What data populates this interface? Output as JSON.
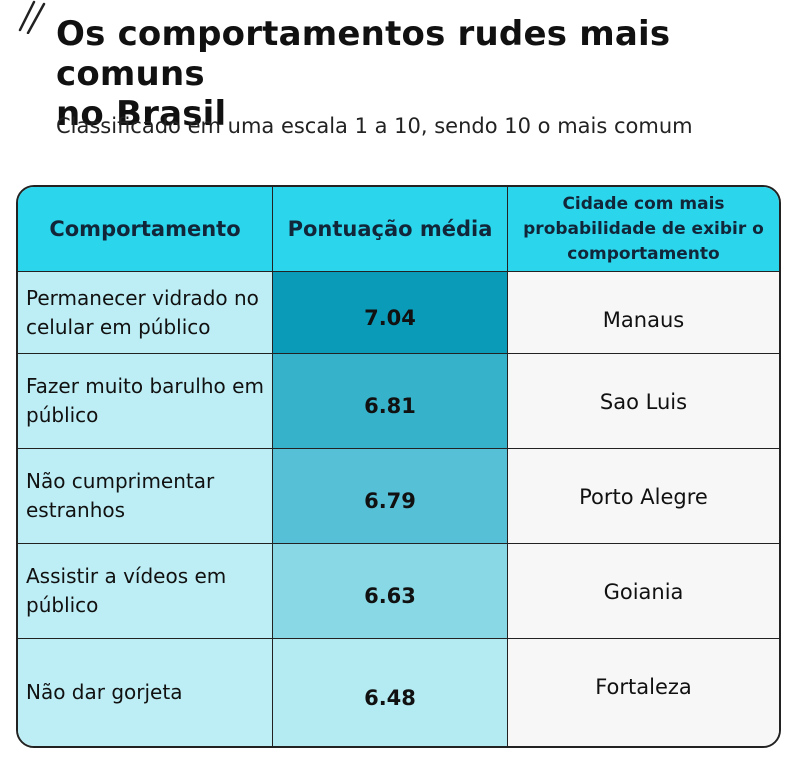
{
  "title": "Os comportamentos rudes mais comuns\nno Brasil",
  "subtitle": "Classificado em uma escala 1 a 10, sendo 10 o mais comum",
  "chart_data": {
    "type": "table",
    "columns": [
      "Comportamento",
      "Pontuação média",
      "Cidade com mais probabilidade de exibir o comportamento"
    ],
    "rows": [
      {
        "behavior": "Permanecer vidrado no celular em público",
        "score": 7.04,
        "score_label": "7.04",
        "city": "Manaus"
      },
      {
        "behavior": "Fazer muito barulho em público",
        "score": 6.81,
        "score_label": "6.81",
        "city": "Sao Luis"
      },
      {
        "behavior": "Não cumprimentar estranhos",
        "score": 6.79,
        "score_label": "6.79",
        "city": "Porto Alegre"
      },
      {
        "behavior": "Assistir a vídeos em público",
        "score": 6.63,
        "score_label": "6.63",
        "city": "Goiania"
      },
      {
        "behavior": "Não dar gorjeta",
        "score": 6.48,
        "score_label": "6.48",
        "city": "Fortaleza"
      }
    ]
  },
  "colors": {
    "header": "#2bd6ec",
    "behavior_cell": "#bdeef5",
    "city_cell": "#f7f7f7",
    "score_scale": [
      "#0a9bb8",
      "#36b3cb",
      "#56c0d6",
      "#88d9e5",
      "#b4ebf3"
    ]
  }
}
